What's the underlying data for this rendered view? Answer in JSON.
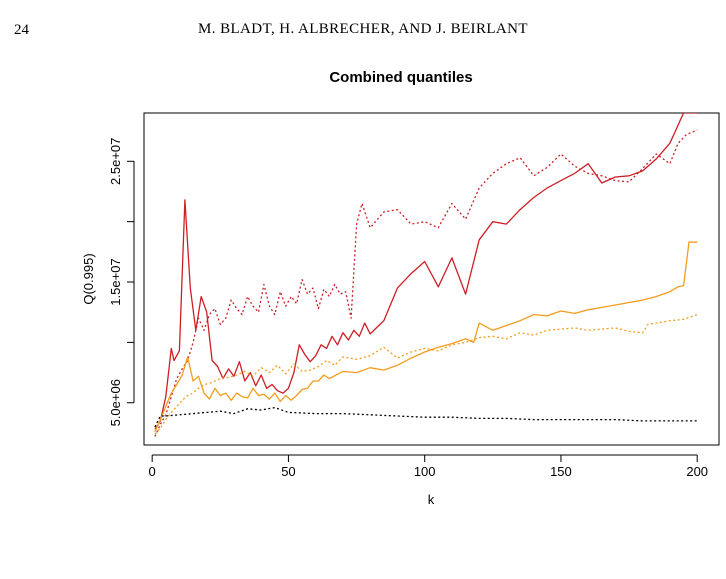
{
  "header": {
    "page_number": "24",
    "running_head": "M. BLADT, H. ALBRECHER, AND J. BEIRLANT"
  },
  "chart_data": {
    "type": "line",
    "title": "Combined quantiles",
    "xlabel": "k",
    "ylabel": "Q(0.995)",
    "xlim": [
      -3,
      208
    ],
    "ylim": [
      1500000,
      29000000
    ],
    "x_ticks": [
      {
        "value": 0,
        "label": "0"
      },
      {
        "value": 50,
        "label": "50"
      },
      {
        "value": 100,
        "label": "100"
      },
      {
        "value": 150,
        "label": "150"
      },
      {
        "value": 200,
        "label": "200"
      }
    ],
    "y_ticks": [
      {
        "value": 5000000,
        "label": "5.0e+06"
      },
      {
        "value": 15000000,
        "label": "1.5e+07"
      },
      {
        "value": 25000000,
        "label": "2.5e+07"
      }
    ],
    "grid": false,
    "legend": "none",
    "series": [
      {
        "color": "#cc1f26",
        "style": "solid",
        "x": [
          1,
          3,
          5,
          7,
          8,
          10,
          12,
          14,
          16,
          18,
          20,
          22,
          24,
          26,
          28,
          30,
          32,
          34,
          36,
          38,
          40,
          42,
          44,
          46,
          48,
          50,
          52,
          54,
          56,
          58,
          60,
          62,
          64,
          66,
          68,
          70,
          72,
          74,
          76,
          78,
          80,
          85,
          90,
          95,
          100,
          105,
          110,
          115,
          120,
          125,
          130,
          135,
          140,
          145,
          150,
          155,
          160,
          165,
          170,
          175,
          180,
          185,
          190,
          192,
          194,
          195,
          200
        ],
        "y": [
          2800000,
          3500000,
          5500000,
          9500000,
          8500000,
          9300000,
          21800000,
          14500000,
          11000000,
          13800000,
          12500000,
          8500000,
          8000000,
          7000000,
          7800000,
          7200000,
          8400000,
          6800000,
          7500000,
          6400000,
          7300000,
          6200000,
          6500000,
          6000000,
          5800000,
          6200000,
          7500000,
          9800000,
          9000000,
          8400000,
          8900000,
          9800000,
          9500000,
          10500000,
          9800000,
          10800000,
          10200000,
          11000000,
          10500000,
          11600000,
          10700000,
          11800000,
          14500000,
          15700000,
          16700000,
          14600000,
          17000000,
          14000000,
          18500000,
          20000000,
          19800000,
          21000000,
          22000000,
          22800000,
          23400000,
          24000000,
          24800000,
          23200000,
          23700000,
          23800000,
          24200000,
          25200000,
          26500000,
          27500000,
          28500000,
          29000000,
          29000000
        ]
      },
      {
        "color": "#cc1f26",
        "style": "dotted",
        "x": [
          1,
          3,
          5,
          7,
          9,
          11,
          13,
          15,
          17,
          19,
          21,
          23,
          25,
          27,
          29,
          31,
          33,
          35,
          37,
          39,
          41,
          43,
          45,
          47,
          49,
          51,
          53,
          55,
          57,
          59,
          61,
          63,
          65,
          67,
          69,
          71,
          73,
          75,
          77,
          80,
          85,
          90,
          95,
          100,
          105,
          110,
          115,
          120,
          125,
          130,
          135,
          140,
          145,
          150,
          155,
          160,
          165,
          170,
          175,
          180,
          185,
          190,
          193,
          196,
          200
        ],
        "y": [
          2200000,
          3200000,
          4000000,
          5500000,
          7000000,
          7800000,
          8500000,
          10000000,
          12000000,
          11000000,
          12300000,
          12800000,
          11500000,
          12000000,
          13500000,
          12800000,
          12300000,
          13800000,
          13000000,
          12500000,
          14800000,
          13000000,
          12300000,
          14200000,
          13000000,
          13800000,
          13200000,
          15200000,
          14000000,
          14500000,
          12800000,
          14400000,
          13800000,
          14800000,
          14000000,
          14200000,
          12000000,
          19800000,
          21500000,
          19500000,
          20800000,
          21000000,
          19800000,
          20000000,
          19500000,
          21500000,
          20200000,
          22800000,
          24000000,
          24800000,
          25300000,
          23800000,
          24500000,
          25600000,
          24600000,
          24000000,
          23800000,
          23400000,
          23300000,
          24400000,
          25600000,
          24800000,
          26500000,
          27200000,
          27600000
        ]
      },
      {
        "color": "#f29d1d",
        "style": "solid",
        "x": [
          1,
          3,
          5,
          7,
          9,
          11,
          13,
          15,
          17,
          19,
          21,
          23,
          25,
          27,
          29,
          31,
          33,
          35,
          37,
          39,
          41,
          43,
          45,
          47,
          49,
          51,
          53,
          55,
          57,
          59,
          61,
          63,
          65,
          70,
          75,
          80,
          85,
          90,
          95,
          100,
          105,
          110,
          115,
          118,
          120,
          125,
          130,
          135,
          140,
          145,
          150,
          155,
          160,
          165,
          170,
          175,
          180,
          185,
          190,
          193,
          195,
          197,
          200
        ],
        "y": [
          2600000,
          3600000,
          4700000,
          5800000,
          6500000,
          7300000,
          8800000,
          6800000,
          7200000,
          5800000,
          5300000,
          6200000,
          5600000,
          5800000,
          5200000,
          5800000,
          5500000,
          5400000,
          6200000,
          5600000,
          5700000,
          5300000,
          5800000,
          5100000,
          5600000,
          5200000,
          5600000,
          6100000,
          6200000,
          6800000,
          6800000,
          7300000,
          7000000,
          7600000,
          7500000,
          7900000,
          7700000,
          8100000,
          8700000,
          9200000,
          9600000,
          9900000,
          10300000,
          10000000,
          11600000,
          11000000,
          11400000,
          11800000,
          12300000,
          12200000,
          12600000,
          12400000,
          12700000,
          12900000,
          13100000,
          13300000,
          13500000,
          13800000,
          14200000,
          14600000,
          14700000,
          18300000,
          18300000
        ]
      },
      {
        "color": "#f29d1d",
        "style": "dotted",
        "x": [
          1,
          3,
          5,
          7,
          9,
          11,
          13,
          15,
          17,
          19,
          21,
          23,
          25,
          28,
          31,
          34,
          37,
          40,
          43,
          46,
          49,
          52,
          55,
          58,
          61,
          64,
          67,
          70,
          75,
          80,
          85,
          90,
          95,
          100,
          105,
          110,
          115,
          120,
          125,
          130,
          135,
          140,
          145,
          150,
          155,
          160,
          165,
          170,
          175,
          180,
          182,
          185,
          190,
          195,
          200
        ],
        "y": [
          2400000,
          2900000,
          3600000,
          4200000,
          4700000,
          5200000,
          5600000,
          5800000,
          6200000,
          6500000,
          6600000,
          6800000,
          7000000,
          7100000,
          7300000,
          7600000,
          7200000,
          7900000,
          7500000,
          8100000,
          7400000,
          8200000,
          7600000,
          7700000,
          8000000,
          8500000,
          8100000,
          8800000,
          8600000,
          8900000,
          9600000,
          8700000,
          9200000,
          9500000,
          9300000,
          9800000,
          10000000,
          10400000,
          10500000,
          10300000,
          10800000,
          10600000,
          11000000,
          11100000,
          11200000,
          11000000,
          11100000,
          11200000,
          10900000,
          10800000,
          11500000,
          11600000,
          11800000,
          11900000,
          12300000
        ]
      },
      {
        "color": "#000000",
        "style": "dotted",
        "x": [
          1,
          3,
          5,
          10,
          15,
          20,
          25,
          30,
          35,
          40,
          45,
          50,
          60,
          70,
          80,
          90,
          100,
          110,
          120,
          130,
          140,
          150,
          160,
          170,
          180,
          190,
          200
        ],
        "y": [
          3000000,
          3900000,
          3900000,
          4000000,
          4100000,
          4200000,
          4300000,
          4100000,
          4500000,
          4400000,
          4600000,
          4200000,
          4100000,
          4100000,
          4000000,
          3900000,
          3800000,
          3800000,
          3700000,
          3700000,
          3600000,
          3600000,
          3600000,
          3600000,
          3500000,
          3500000,
          3500000
        ]
      }
    ]
  }
}
